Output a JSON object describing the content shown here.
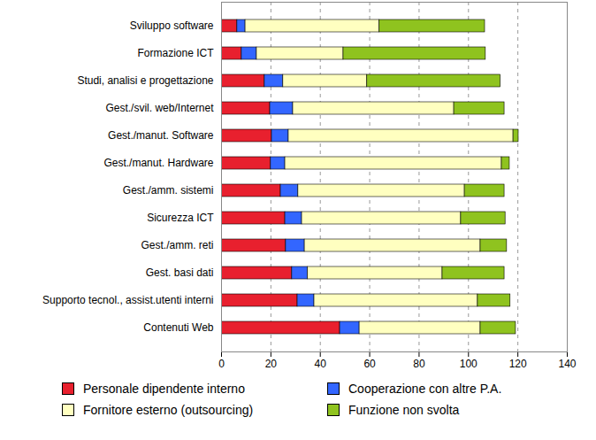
{
  "chart_data": {
    "type": "bar",
    "orientation": "horizontal",
    "stacked": true,
    "grid": true,
    "legend": "bottom",
    "categories": [
      "Sviluppo software",
      "Formazione ICT",
      "Studi, analisi e progettazione",
      "Gest./svil. web/Internet",
      "Gest./manut. Software",
      "Gest./manut. Hardware",
      "Gest./amm. sistemi",
      "Sicurezza ICT",
      "Gest./amm. reti",
      "Gest. basi dati",
      "Supporto tecnol., assist.utenti interni",
      "Contenuti Web"
    ],
    "series": [
      {
        "name": "Personale dipendente interno",
        "color": "#e8202e",
        "values": [
          6.4,
          8.2,
          17.5,
          19.7,
          20.4,
          20,
          24,
          25.8,
          26.1,
          28.6,
          30.8,
          48
        ]
      },
      {
        "name": "Cooperazione con altre P.A.",
        "color": "#3366ff",
        "values": [
          3.3,
          6.1,
          7.5,
          9.3,
          6.8,
          5.8,
          7.1,
          6.8,
          7.6,
          6.4,
          6.8,
          7.9
        ]
      },
      {
        "name": "Fornitore esterno (outsourcing)",
        "color": "#ffffc0",
        "values": [
          54.3,
          35.1,
          34,
          65.2,
          91,
          87.7,
          67.4,
          64.4,
          71.2,
          54.5,
          66.2,
          49
        ]
      },
      {
        "name": "Funzione non svolta",
        "color": "#8fc31f",
        "values": [
          42.7,
          57.6,
          54,
          20.4,
          2.1,
          3.2,
          16.1,
          18,
          10.7,
          25.1,
          13.2,
          14.3
        ]
      }
    ],
    "xlim": [
      0,
      140
    ],
    "xticks": [
      0,
      20,
      40,
      60,
      80,
      100,
      120,
      140
    ]
  }
}
